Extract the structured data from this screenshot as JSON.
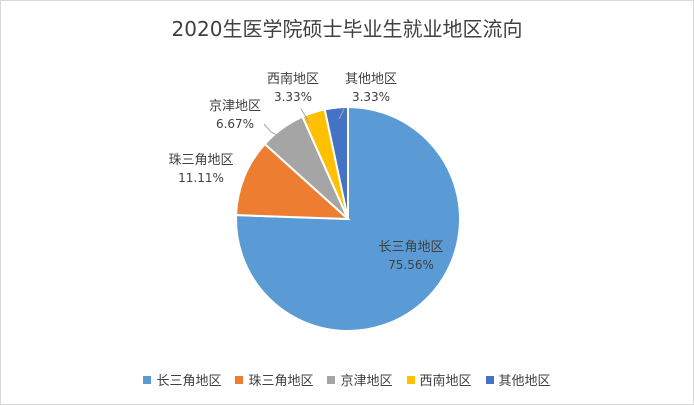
{
  "chart_data": {
    "type": "pie",
    "title": "2020生医学院硕士毕业生就业地区流向",
    "slices": [
      {
        "label": "长三角地区",
        "value": 75.56,
        "value_label": "75.56%",
        "color": "#5b9bd5"
      },
      {
        "label": "珠三角地区",
        "value": 11.11,
        "value_label": "11.11%",
        "color": "#ed7d31"
      },
      {
        "label": "京津地区",
        "value": 6.67,
        "value_label": "6.67%",
        "color": "#a5a5a5"
      },
      {
        "label": "西南地区",
        "value": 3.33,
        "value_label": "3.33%",
        "color": "#ffc000"
      },
      {
        "label": "其他地区",
        "value": 3.33,
        "value_label": "3.33%",
        "color": "#4472c4"
      }
    ],
    "legend_position": "bottom"
  }
}
